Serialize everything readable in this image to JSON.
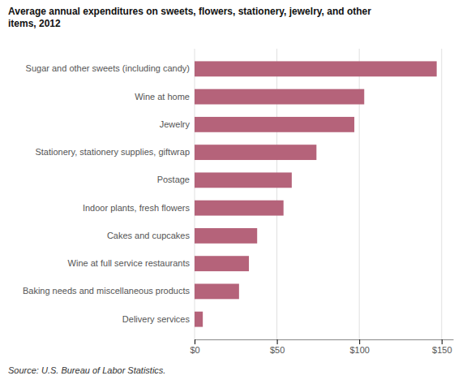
{
  "chart_data": {
    "type": "bar",
    "orientation": "horizontal",
    "title": "Average annual expenditures on sweets, flowers, stationery, jewelry, and other\nitems, 2012",
    "categories": [
      "Delivery services",
      "Baking needs and miscellaneous products",
      "Wine at full service restaurants",
      "Cakes and cupcakes",
      "Indoor plants, fresh flowers",
      "Postage",
      "Stationery, stationery supplies, giftwrap",
      "Jewelry",
      "Wine at home",
      "Sugar and other sweets (including candy)"
    ],
    "values": [
      5,
      27,
      33,
      38,
      54,
      59,
      74,
      97,
      103,
      147
    ],
    "color": "#b5637a",
    "xlim": [
      0,
      157
    ],
    "xticks": [
      {
        "value": 0,
        "label": "$0"
      },
      {
        "value": 50,
        "label": "$50"
      },
      {
        "value": 100,
        "label": "$100"
      },
      {
        "value": 150,
        "label": "$150"
      }
    ],
    "grid": true,
    "annotations": [
      "Source: U.S. Bureau of Labor Statistics."
    ]
  }
}
